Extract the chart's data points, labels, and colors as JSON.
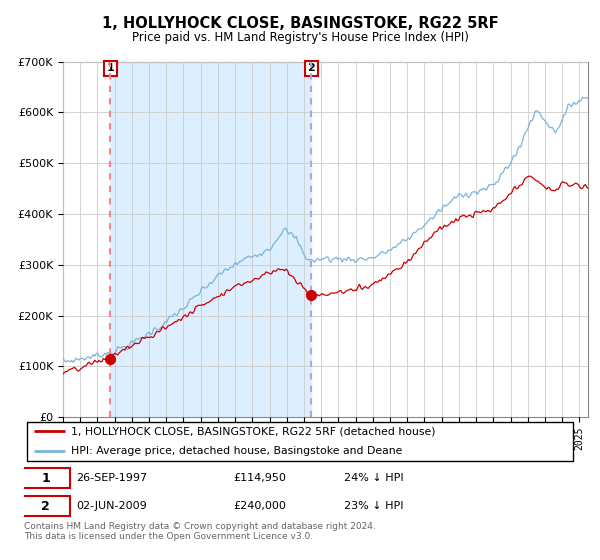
{
  "title": "1, HOLLYHOCK CLOSE, BASINGSTOKE, RG22 5RF",
  "subtitle": "Price paid vs. HM Land Registry's House Price Index (HPI)",
  "legend_line1": "1, HOLLYHOCK CLOSE, BASINGSTOKE, RG22 5RF (detached house)",
  "legend_line2": "HPI: Average price, detached house, Basingstoke and Deane",
  "annotation_footer": "Contains HM Land Registry data © Crown copyright and database right 2024.\nThis data is licensed under the Open Government Licence v3.0.",
  "sale1_label": "1",
  "sale1_date": "26-SEP-1997",
  "sale1_price": "£114,950",
  "sale1_hpi": "24% ↓ HPI",
  "sale1_year": 1997.74,
  "sale1_value": 114950,
  "sale2_label": "2",
  "sale2_date": "02-JUN-2009",
  "sale2_price": "£240,000",
  "sale2_hpi": "23% ↓ HPI",
  "sale2_year": 2009.42,
  "sale2_value": 240000,
  "hpi_color": "#7ab4d8",
  "price_color": "#cc0000",
  "marker_color": "#cc0000",
  "dash1_color": "#ee8888",
  "dash2_color": "#aaaacc",
  "shade_color": "#ddeeff",
  "background_color": "#ffffff",
  "grid_color": "#cccccc",
  "ylim_min": 0,
  "ylim_max": 700000,
  "xlim_min": 1995.0,
  "xlim_max": 2025.5,
  "y_ticks": [
    0,
    100000,
    200000,
    300000,
    400000,
    500000,
    600000,
    700000
  ],
  "x_tick_start": 1995,
  "x_tick_end": 2025
}
